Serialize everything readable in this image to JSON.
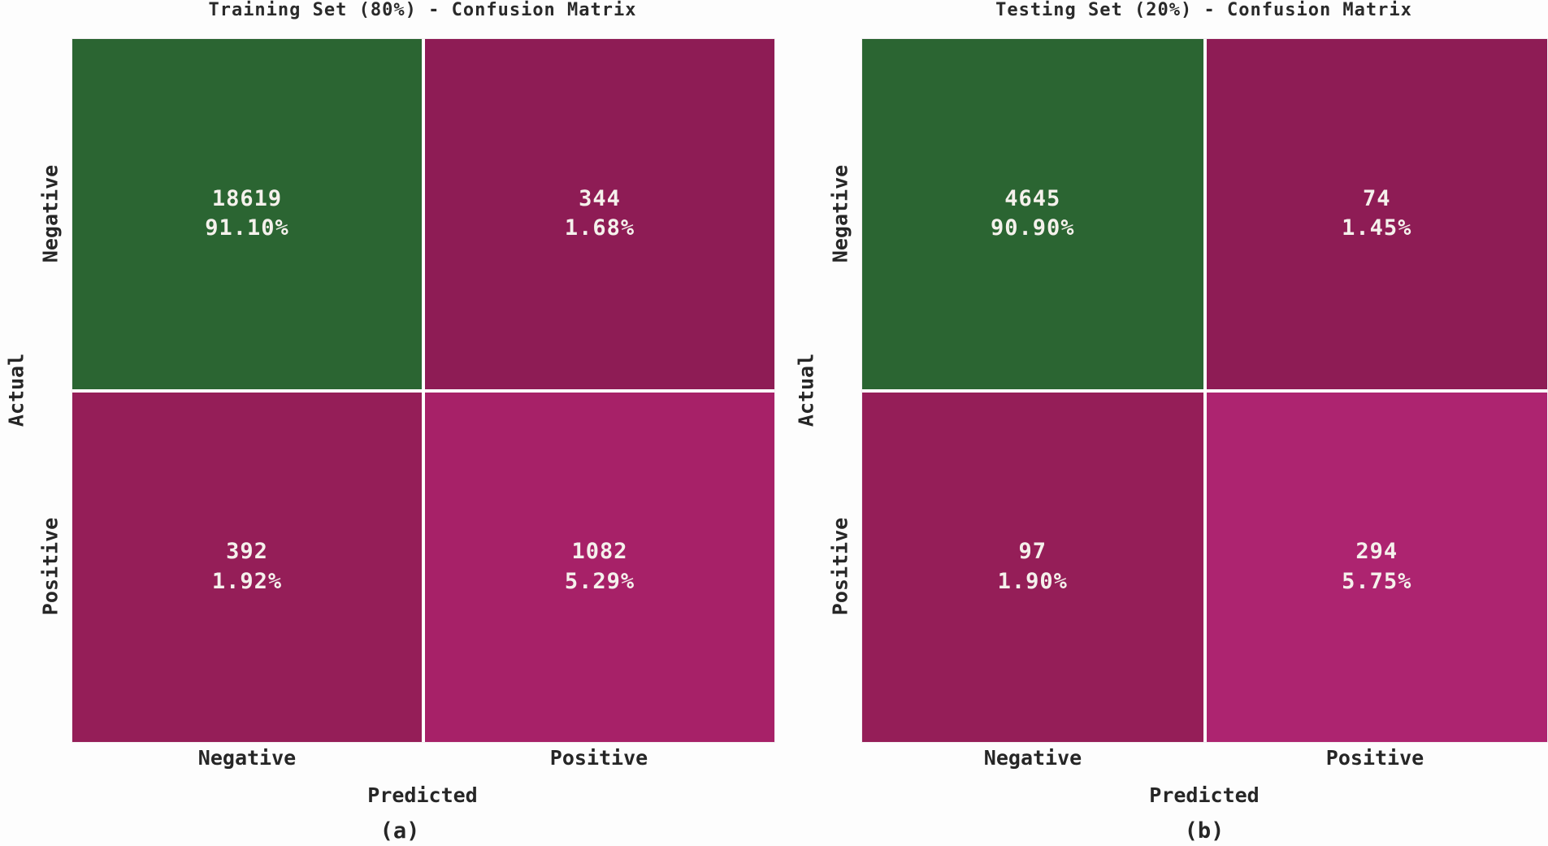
{
  "chart_data": [
    {
      "type": "heatmap",
      "title": "Training Set (80%) - Confusion Matrix",
      "xlabel": "Predicted",
      "ylabel": "Actual",
      "x_tick_labels": [
        "Negative",
        "Positive"
      ],
      "y_tick_labels": [
        "Negative",
        "Positive"
      ],
      "caption": "(a)",
      "legend": "none",
      "cells": [
        {
          "actual": "Negative",
          "predicted": "Negative",
          "count": "18619",
          "percent": "91.10%",
          "color": "#2b6532"
        },
        {
          "actual": "Negative",
          "predicted": "Positive",
          "count": "344",
          "percent": "1.68%",
          "color": "#8e1c55"
        },
        {
          "actual": "Positive",
          "predicted": "Negative",
          "count": "392",
          "percent": "1.92%",
          "color": "#951e58"
        },
        {
          "actual": "Positive",
          "predicted": "Positive",
          "count": "1082",
          "percent": "5.29%",
          "color": "#a72168"
        }
      ]
    },
    {
      "type": "heatmap",
      "title": "Testing Set (20%) - Confusion Matrix",
      "xlabel": "Predicted",
      "ylabel": "Actual",
      "x_tick_labels": [
        "Negative",
        "Positive"
      ],
      "y_tick_labels": [
        "Negative",
        "Positive"
      ],
      "caption": "(b)",
      "legend": "none",
      "cells": [
        {
          "actual": "Negative",
          "predicted": "Negative",
          "count": "4645",
          "percent": "90.90%",
          "color": "#2b6532"
        },
        {
          "actual": "Negative",
          "predicted": "Positive",
          "count": "74",
          "percent": "1.45%",
          "color": "#8e1c55"
        },
        {
          "actual": "Positive",
          "predicted": "Negative",
          "count": "97",
          "percent": "1.90%",
          "color": "#951e58"
        },
        {
          "actual": "Positive",
          "predicted": "Positive",
          "count": "294",
          "percent": "5.75%",
          "color": "#ad2470"
        }
      ]
    }
  ],
  "colors": {
    "background": "#fdfdfd",
    "cell_text": "#f5f1ec",
    "label_text": "#262626",
    "grid_gap": "#ffffff"
  }
}
